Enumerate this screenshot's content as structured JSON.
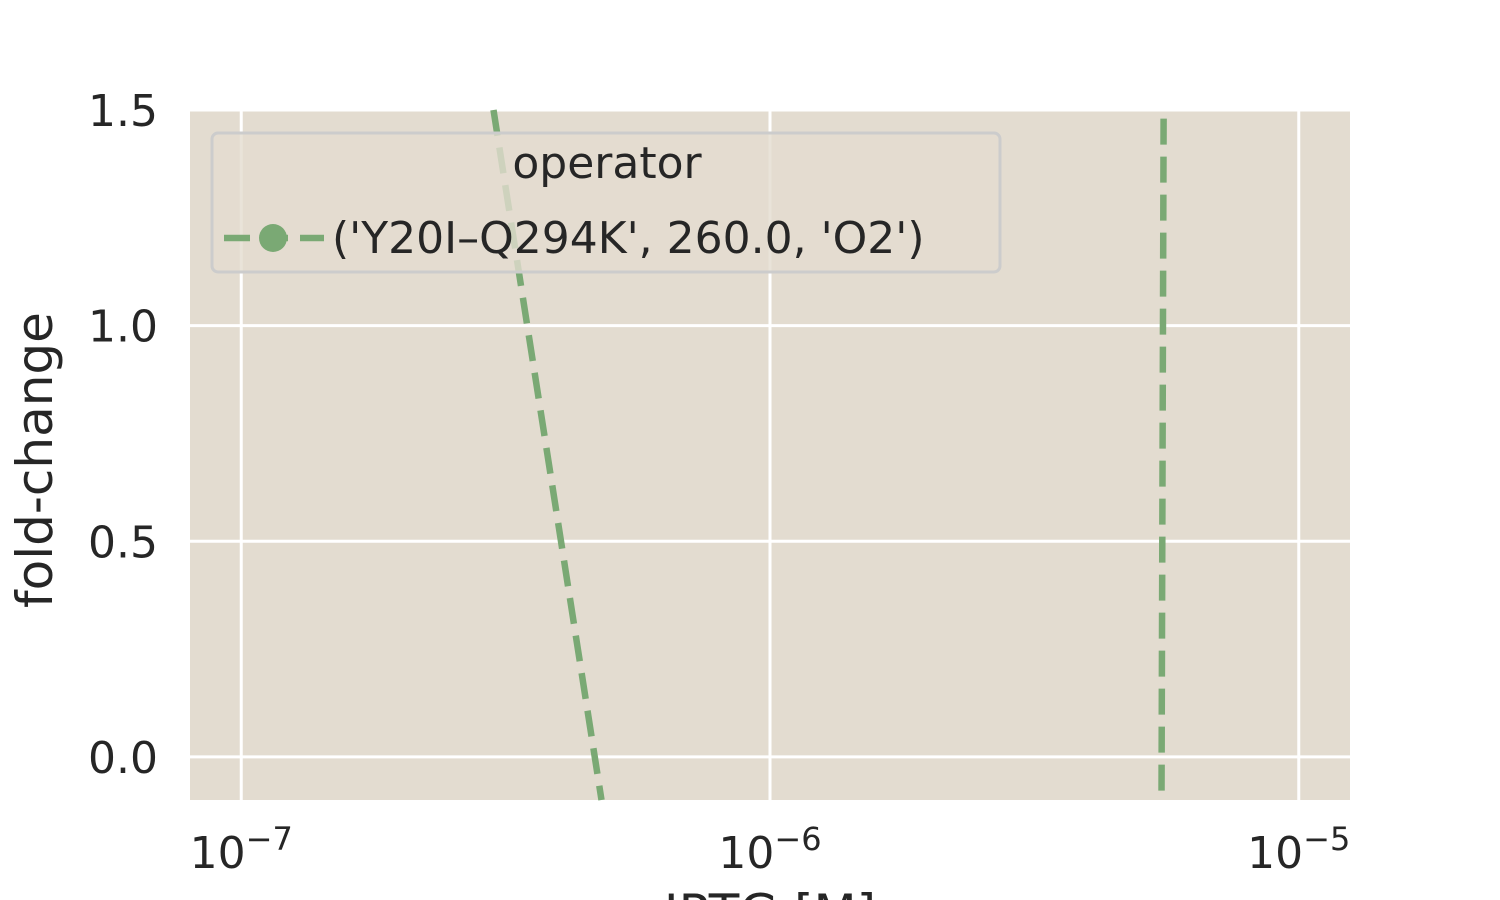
{
  "chart_data": {
    "type": "line",
    "title": "",
    "xlabel": "IPTG [M]",
    "ylabel": "fold-change",
    "x_scale": "log",
    "xlim": [
      8e-08,
      1.25e-05
    ],
    "ylim": [
      -0.1,
      1.5
    ],
    "x_ticks": [
      {
        "value": 1e-07,
        "base": "10",
        "exp": "−7"
      },
      {
        "value": 1e-06,
        "base": "10",
        "exp": "−6"
      },
      {
        "value": 1e-05,
        "base": "10",
        "exp": "−5"
      }
    ],
    "y_ticks": [
      {
        "value": 0.0,
        "label": "0.0"
      },
      {
        "value": 0.5,
        "label": "0.5"
      },
      {
        "value": 1.0,
        "label": "1.0"
      },
      {
        "value": 1.5,
        "label": "1.5"
      }
    ],
    "grid": true,
    "legend": {
      "title": "operator",
      "placement": "top-left",
      "entries": [
        "('Y20I–Q294K', 260.0, 'O2')"
      ]
    },
    "series": [
      {
        "name": "('Y20I–Q294K', 260.0, 'O2')",
        "color": "#7aa974",
        "style": "dashed",
        "segments": [
          [
            {
              "x": 3e-07,
              "y": 1.5
            },
            {
              "x": 4.8e-07,
              "y": -0.1
            }
          ],
          [
            {
              "x": 5.55e-06,
              "y": 1.48
            },
            {
              "x": 5.5e-06,
              "y": -0.1
            }
          ]
        ]
      }
    ]
  },
  "colors": {
    "plot_background": "#e3dcd0",
    "grid": "#ffffff",
    "series": "#7aa974",
    "text": "#262626"
  }
}
